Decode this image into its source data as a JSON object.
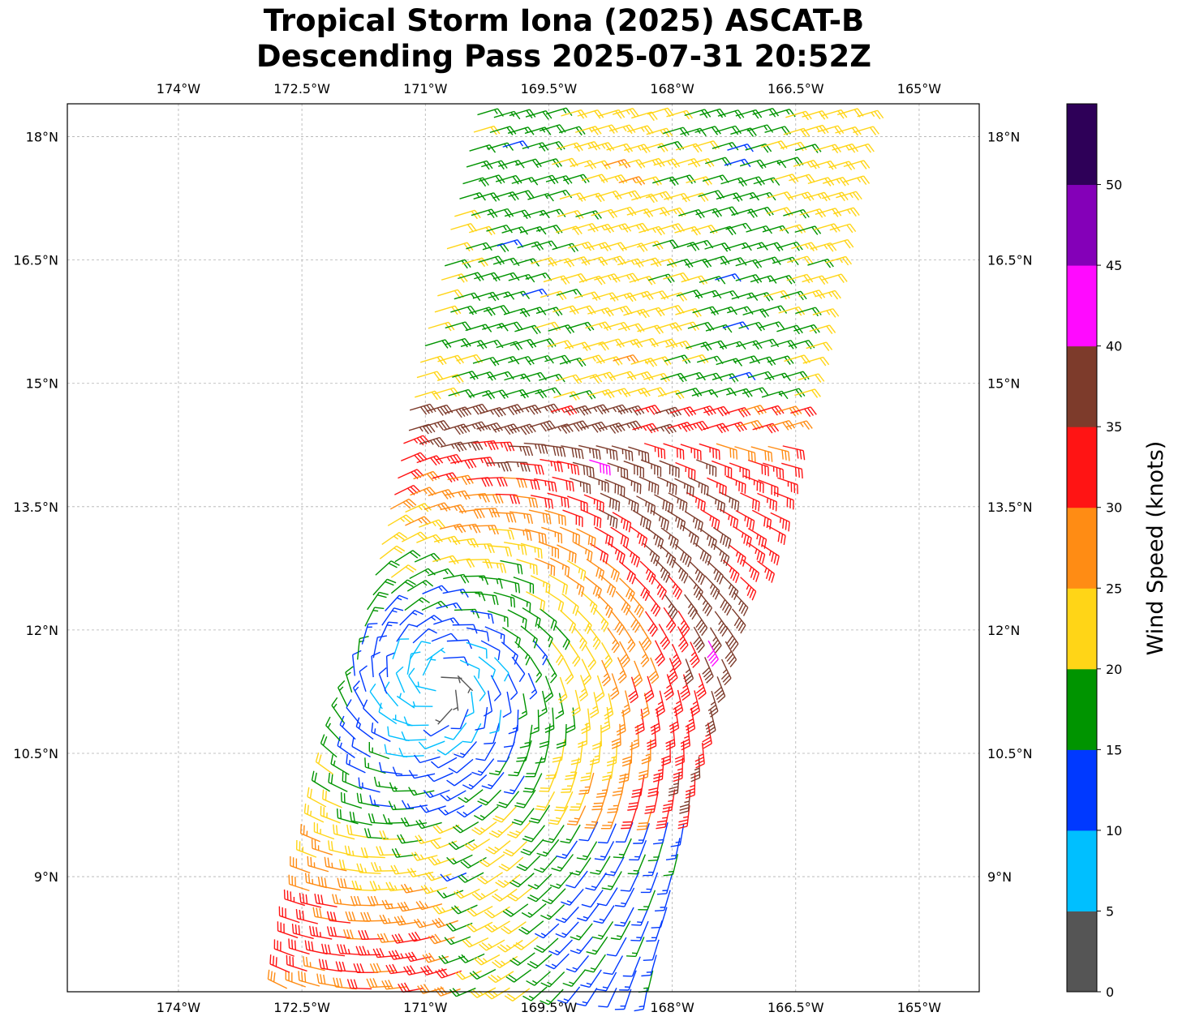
{
  "title": {
    "line1": "Tropical Storm Iona (2025) ASCAT-B",
    "line2": "Descending Pass 2025-07-31 20:52Z"
  },
  "axes": {
    "lon_ticks": [
      "174°W",
      "172.5°W",
      "171°W",
      "169.5°W",
      "168°W",
      "166.5°W",
      "165°W"
    ],
    "lon_values": [
      -174,
      -172.5,
      -171,
      -169.5,
      -168,
      -166.5,
      -165
    ],
    "lat_ticks": [
      "18°N",
      "16.5°N",
      "15°N",
      "13.5°N",
      "12°N",
      "10.5°N",
      "9°N"
    ],
    "lat_values": [
      18,
      16.5,
      15,
      13.5,
      12,
      10.5,
      9
    ],
    "lon_range": [
      -175.35,
      -164.27
    ],
    "lat_range": [
      7.6,
      18.4
    ],
    "grid": true
  },
  "colorbar": {
    "label": "Wind Speed (knots)",
    "tick_labels": [
      "0",
      "5",
      "10",
      "15",
      "20",
      "25",
      "30",
      "35",
      "40",
      "45",
      "50"
    ],
    "bins": [
      {
        "from": 0,
        "to": 5,
        "color": "#555555"
      },
      {
        "from": 5,
        "to": 10,
        "color": "#00bfff"
      },
      {
        "from": 10,
        "to": 15,
        "color": "#0039ff"
      },
      {
        "from": 15,
        "to": 20,
        "color": "#009400"
      },
      {
        "from": 20,
        "to": 25,
        "color": "#ffd517"
      },
      {
        "from": 25,
        "to": 30,
        "color": "#ff8c14"
      },
      {
        "from": 30,
        "to": 35,
        "color": "#ff1414"
      },
      {
        "from": 35,
        "to": 40,
        "color": "#7d3b2b"
      },
      {
        "from": 40,
        "to": 45,
        "color": "#ff0aff"
      },
      {
        "from": 45,
        "to": 50,
        "color": "#8400b8"
      },
      {
        "from": 50,
        "to": 55,
        "color": "#2e0058"
      }
    ],
    "max": 55
  },
  "wind_field": {
    "center": {
      "lon": -170.85,
      "lat": 11.3
    },
    "swath_lat": [
      7.6,
      18.4
    ],
    "swath_west_lon_at_lat": [
      [
        7.6,
        -172.7
      ],
      [
        18.2,
        -170.4
      ]
    ],
    "swath_east_lon_at_lat": [
      [
        7.6,
        -168.2
      ],
      [
        18.4,
        -165.6
      ]
    ],
    "units": "knots"
  }
}
